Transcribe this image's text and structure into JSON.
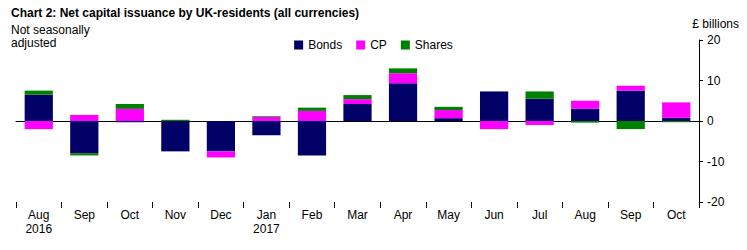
{
  "chart_data": {
    "type": "bar",
    "title": "Chart 2: Net capital issuance by UK-residents (all currencies)",
    "subtitle": "Not seasonally\nadjusted",
    "y_label": "£ billions",
    "categories": [
      "Aug\n2016",
      "Sep",
      "Oct",
      "Nov",
      "Dec",
      "Jan\n2017",
      "Feb",
      "Mar",
      "Apr",
      "May",
      "Jun",
      "Jul",
      "Aug",
      "Sep",
      "Oct"
    ],
    "series": [
      {
        "name": "Bonds",
        "color": "#000066",
        "values": [
          6.5,
          -8,
          -0.3,
          -7.5,
          -7.5,
          -3.5,
          -8.5,
          4.2,
          9.3,
          0.7,
          7.3,
          5.5,
          3,
          7.5,
          0.8
        ]
      },
      {
        "name": "CP",
        "color": "#ff00ff",
        "values": [
          -2,
          1.5,
          3,
          0,
          -1.5,
          1,
          2.5,
          1.2,
          2.5,
          2,
          -2,
          -1,
          2,
          1.2,
          3.8
        ]
      },
      {
        "name": "Shares",
        "color": "#008000",
        "values": [
          1,
          -0.5,
          1.2,
          0.3,
          0,
          0.2,
          0.8,
          1,
          1.2,
          0.8,
          0,
          1.8,
          -0.4,
          -2,
          -0.3
        ]
      }
    ],
    "ylim": [
      -20,
      20
    ],
    "yticks": [
      -20,
      -10,
      0,
      10,
      20
    ],
    "stacked": true,
    "grid": false,
    "legend": "top"
  }
}
